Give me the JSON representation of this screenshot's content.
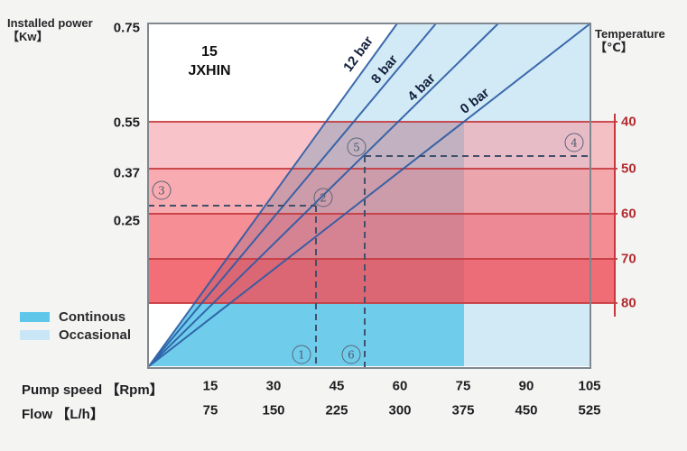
{
  "title": {
    "model": "15",
    "series": "JXHIN"
  },
  "axes": {
    "power": {
      "label_line1": "Installed power",
      "label_line2": "【Kw】",
      "ticks": [
        "0.75",
        "0.55",
        "0.37",
        "0.25"
      ]
    },
    "temperature": {
      "label_line1": "Temperature",
      "label_line2": "【℃】",
      "ticks": [
        "40",
        "50",
        "60",
        "70",
        "80"
      ],
      "color": "#b22b31"
    },
    "pump_speed": {
      "label": "Pump speed 【Rpm】",
      "ticks": [
        "15",
        "30",
        "45",
        "60",
        "75",
        "90",
        "105"
      ]
    },
    "flow": {
      "label": "Flow 【L/h】",
      "ticks": [
        "75",
        "150",
        "225",
        "300",
        "375",
        "450",
        "525"
      ]
    }
  },
  "pressure_lines": [
    {
      "label": "12 bar"
    },
    {
      "label": "8 bar"
    },
    {
      "label": "4 bar"
    },
    {
      "label": "0 bar"
    }
  ],
  "legend": [
    {
      "label": "Continous",
      "color": "#5ec7e9"
    },
    {
      "label": "Occasional",
      "color": "#c9e6f6"
    }
  ],
  "markers": [
    "1",
    "2",
    "3",
    "4",
    "5",
    "6"
  ],
  "chart_data": {
    "type": "line",
    "title": "15 JXHIN pump performance",
    "xlabel": "Pump speed 【Rpm】 / Flow 【L/h】",
    "ylabel_left": "Installed power 【Kw】",
    "ylabel_right": "Temperature 【℃】",
    "x_pump_speed_rpm": [
      15,
      30,
      45,
      60,
      75,
      90,
      105
    ],
    "x_flow_lh": [
      75,
      150,
      225,
      300,
      375,
      450,
      525
    ],
    "power_ticks_kw": [
      0.75,
      0.55,
      0.37,
      0.25
    ],
    "temperature_ticks_c": [
      40,
      50,
      60,
      70,
      80
    ],
    "series": [
      {
        "name": "12 bar",
        "points_rpm_kw": [
          [
            0,
            0
          ],
          [
            59,
            0.75
          ]
        ]
      },
      {
        "name": "8 bar",
        "points_rpm_kw": [
          [
            0,
            0
          ],
          [
            69,
            0.75
          ]
        ]
      },
      {
        "name": "4 bar",
        "points_rpm_kw": [
          [
            0,
            0
          ],
          [
            83,
            0.75
          ]
        ]
      },
      {
        "name": "0 bar",
        "points_rpm_kw": [
          [
            0,
            0
          ],
          [
            105,
            0.75
          ]
        ]
      }
    ],
    "temperature_bands_c": [
      [
        40,
        50
      ],
      [
        50,
        60
      ],
      [
        60,
        70
      ],
      [
        70,
        80
      ]
    ],
    "regions": [
      {
        "name": "Continous",
        "description": "right of 12 bar line, below 0.55 kW, up to 75 rpm"
      },
      {
        "name": "Occasional",
        "description": "right of 12 bar line, up to 105 rpm"
      }
    ],
    "example_points": [
      {
        "marker": "1",
        "axis": "pump speed",
        "rpm": 40
      },
      {
        "marker": "2",
        "on": "4 bar line",
        "rpm": 40,
        "kw": 0.29
      },
      {
        "marker": "3",
        "axis": "installed power",
        "kw": 0.29
      },
      {
        "marker": "4",
        "axis": "temperature",
        "c": 47
      },
      {
        "marker": "5",
        "on": "4 bar line",
        "rpm": 52,
        "kw": 0.42,
        "c": 47
      },
      {
        "marker": "6",
        "axis": "pump speed",
        "rpm": 52
      }
    ],
    "legend_position": "bottom-left",
    "grid": "temperature band lines only"
  }
}
